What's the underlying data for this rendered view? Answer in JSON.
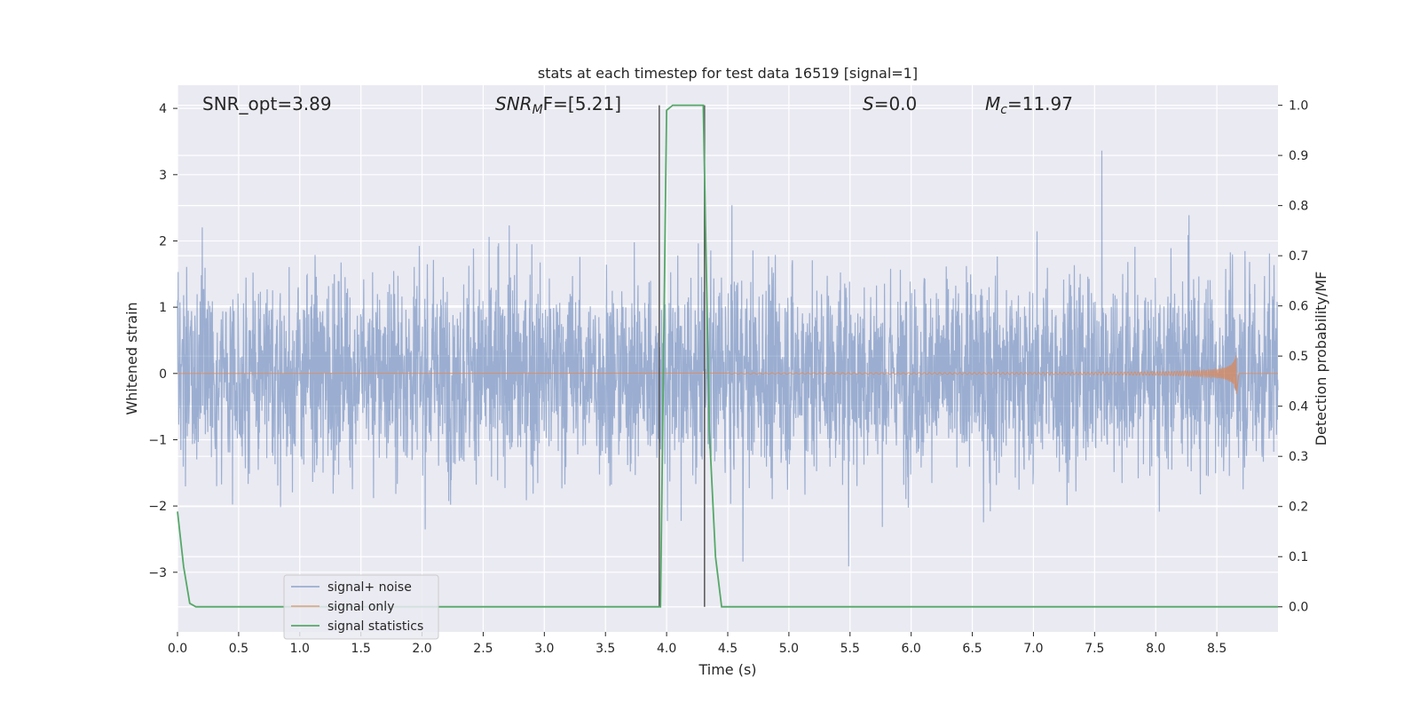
{
  "chart_data": {
    "type": "line",
    "title": "stats at each timestep for test data 16519 [signal=1]",
    "xlabel": "Time (s)",
    "ylabel": "Whitened strain",
    "y2label": "Detection probability/MF",
    "xlim": [
      0.0,
      9.0
    ],
    "ylim": [
      -3.9,
      4.35
    ],
    "y2lim": [
      -0.05,
      1.04
    ],
    "x_ticks": [
      "0.0",
      "0.5",
      "1.0",
      "1.5",
      "2.0",
      "2.5",
      "3.0",
      "3.5",
      "4.0",
      "4.5",
      "5.0",
      "5.5",
      "6.0",
      "6.5",
      "7.0",
      "7.5",
      "8.0",
      "8.5"
    ],
    "x_tick_values": [
      0.0,
      0.5,
      1.0,
      1.5,
      2.0,
      2.5,
      3.0,
      3.5,
      4.0,
      4.5,
      5.0,
      5.5,
      6.0,
      6.5,
      7.0,
      7.5,
      8.0,
      8.5
    ],
    "y_ticks": [
      "4",
      "3",
      "2",
      "1",
      "0",
      "−1",
      "−2",
      "−3"
    ],
    "y_tick_values": [
      4,
      3,
      2,
      1,
      0,
      -1,
      -2,
      -3
    ],
    "y2_ticks": [
      "1.0",
      "0.9",
      "0.8",
      "0.7",
      "0.6",
      "0.5",
      "0.4",
      "0.3",
      "0.2",
      "0.1",
      "0.0"
    ],
    "y2_tick_values": [
      1.0,
      0.9,
      0.8,
      0.7,
      0.6,
      0.5,
      0.4,
      0.3,
      0.2,
      0.1,
      0.0
    ],
    "grid": true,
    "legend_position": "lower-left",
    "annotations": {
      "snr_opt": "SNR_opt=3.89",
      "snr_mf_main": "SNR",
      "snr_mf_sub": "M",
      "snr_mf_rest": "F=[5.21]",
      "s_main": "S",
      "s_rest": "=0.0",
      "mc_main": "M",
      "mc_sub": "c",
      "mc_rest": "=11.97"
    },
    "vertical_lines_x": [
      3.94,
      4.31
    ],
    "series": [
      {
        "name": "signal+ noise",
        "color": "#4c72b0",
        "description_points": "dense noise, approx |y| up to 2.5 with spikes to ~4",
        "noise_amplitude": 1.0,
        "peak_envelope": [
          [
            0.0,
            2.5
          ],
          [
            9.0,
            2.5
          ]
        ]
      },
      {
        "name": "signal only",
        "color": "#dd8452",
        "chirp": {
          "start": 4.5,
          "end": 8.66,
          "peak_amplitude": 0.5
        }
      },
      {
        "name": "signal statistics",
        "color": "#55a868",
        "axis": "right",
        "x": [
          0.0,
          0.05,
          0.1,
          0.15,
          3.9,
          3.95,
          4.0,
          4.05,
          4.3,
          4.35,
          4.4,
          4.45,
          9.0
        ],
        "y": [
          0.19,
          0.08,
          0.007,
          0.0,
          0.0,
          0.0,
          0.99,
          1.0,
          1.0,
          0.35,
          0.1,
          0.0,
          0.0
        ]
      }
    ]
  }
}
